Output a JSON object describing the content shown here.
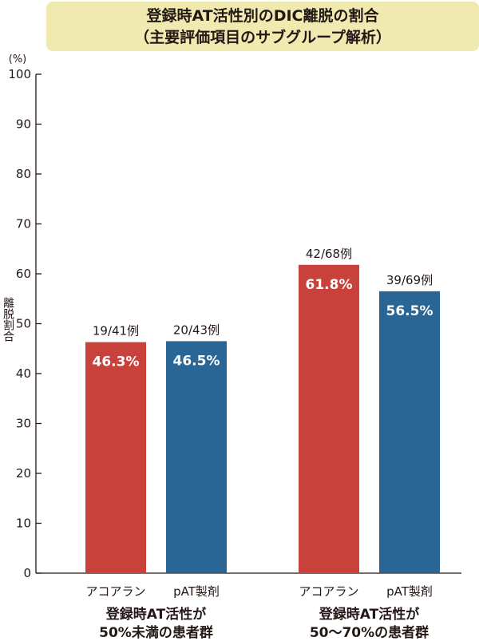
{
  "title_line1": "登録時AT活性別のDIC離脱の割合",
  "title_line2": "（主要評価項目のサブグループ解析）",
  "chart_data": {
    "type": "bar",
    "title": "登録時AT活性別のDIC離脱の割合（主要評価項目のサブグループ解析）",
    "ylabel": "離脱割合",
    "yunit": "(%)",
    "ylim": [
      0,
      100
    ],
    "yticks": [
      0,
      10,
      20,
      30,
      40,
      50,
      60,
      70,
      80,
      90,
      100
    ],
    "grid": false,
    "colors": {
      "アコアラン": "#c8413a",
      "pAT製剤": "#2a6695"
    },
    "groups": [
      {
        "label_line1": "登録時AT活性が",
        "label_line2": "50%未満の患者群",
        "bars": [
          {
            "category": "アコアラン",
            "value": 46.3,
            "value_label": "46.3%",
            "count": "19/41例"
          },
          {
            "category": "pAT製剤",
            "value": 46.5,
            "value_label": "46.5%",
            "count": "20/43例"
          }
        ]
      },
      {
        "label_line1": "登録時AT活性が",
        "label_line2": "50～70%の患者群",
        "bars": [
          {
            "category": "アコアラン",
            "value": 61.8,
            "value_label": "61.8%",
            "count": "42/68例"
          },
          {
            "category": "pAT製剤",
            "value": 56.5,
            "value_label": "56.5%",
            "count": "39/69例"
          }
        ]
      }
    ]
  }
}
